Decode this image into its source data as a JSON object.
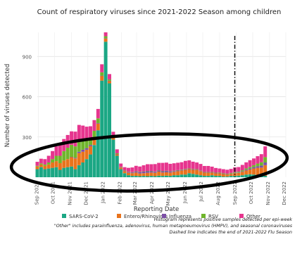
{
  "chart_data": {
    "type": "bar",
    "stacked": true,
    "title": "Count of respiratory viruses since 2021-2022 Season among children",
    "xlabel": "Reporting Date",
    "ylabel": "Number of viruses detected",
    "ylim": [
      0,
      1080
    ],
    "yticks": [
      300,
      600,
      900
    ],
    "xticks": [
      "Sep 2021",
      "Oct 2021",
      "Nov 2021",
      "Dec 2021",
      "Jan 2022",
      "Feb 2022",
      "Mar 2022",
      "Apr 2022",
      "May 2022",
      "Jun 2022",
      "Jul 2022",
      "Aug 2022",
      "Sep 2022",
      "Oct 2022",
      "Nov 2022",
      "Dec 2022"
    ],
    "grid": true,
    "legend_placement": "bottom",
    "series": [
      {
        "name": "SARS-CoV-2",
        "color": "#1ba784",
        "values": [
          60,
          75,
          60,
          65,
          70,
          75,
          55,
          70,
          75,
          80,
          60,
          90,
          110,
          135,
          170,
          240,
          350,
          720,
          1010,
          700,
          280,
          160,
          60,
          30,
          15,
          10,
          10,
          8,
          10,
          8,
          10,
          8,
          12,
          10,
          12,
          10,
          15,
          15,
          20,
          20,
          30,
          25,
          20,
          15,
          10,
          10,
          15,
          10,
          10,
          5,
          6,
          10,
          10,
          12,
          15,
          20,
          22,
          20,
          15,
          12,
          10
        ]
      },
      {
        "name": "Entero/Rhinovirus",
        "color": "#e8731c",
        "values": [
          20,
          20,
          25,
          30,
          40,
          45,
          50,
          55,
          60,
          70,
          80,
          90,
          80,
          70,
          60,
          55,
          50,
          35,
          25,
          18,
          15,
          12,
          12,
          15,
          18,
          20,
          25,
          20,
          20,
          25,
          25,
          25,
          30,
          25,
          25,
          25,
          25,
          30,
          30,
          35,
          30,
          30,
          35,
          30,
          25,
          25,
          20,
          20,
          20,
          20,
          15,
          15,
          20,
          20,
          25,
          30,
          35,
          45,
          55,
          60,
          80
        ]
      },
      {
        "name": "Influenza",
        "color": "#7c4fa6",
        "values": [
          0,
          0,
          0,
          0,
          0,
          0,
          0,
          0,
          0,
          2,
          5,
          10,
          15,
          12,
          10,
          6,
          4,
          2,
          1,
          1,
          1,
          1,
          2,
          3,
          5,
          6,
          8,
          10,
          12,
          12,
          10,
          8,
          8,
          10,
          10,
          8,
          6,
          5,
          4,
          4,
          3,
          3,
          2,
          1,
          1,
          1,
          1,
          1,
          1,
          1,
          1,
          2,
          3,
          3,
          4,
          6,
          8,
          10,
          12,
          15,
          20
        ]
      },
      {
        "name": "RSV",
        "color": "#6fb52c",
        "values": [
          5,
          8,
          10,
          15,
          25,
          40,
          55,
          70,
          85,
          90,
          85,
          80,
          70,
          60,
          50,
          45,
          35,
          25,
          15,
          10,
          8,
          5,
          3,
          2,
          2,
          2,
          2,
          2,
          2,
          2,
          2,
          2,
          2,
          2,
          2,
          2,
          3,
          3,
          3,
          3,
          3,
          3,
          3,
          3,
          3,
          3,
          3,
          3,
          4,
          4,
          4,
          5,
          5,
          6,
          8,
          10,
          12,
          15,
          20,
          25,
          40
        ]
      },
      {
        "name": "Other",
        "color": "#e6358e",
        "values": [
          30,
          35,
          40,
          50,
          60,
          70,
          80,
          90,
          95,
          100,
          110,
          120,
          110,
          100,
          90,
          80,
          70,
          60,
          50,
          40,
          35,
          30,
          25,
          25,
          30,
          35,
          40,
          40,
          45,
          50,
          50,
          55,
          55,
          60,
          60,
          55,
          55,
          55,
          55,
          60,
          60,
          55,
          50,
          50,
          45,
          45,
          40,
          35,
          30,
          30,
          30,
          30,
          35,
          35,
          40,
          45,
          50,
          50,
          55,
          60,
          80
        ]
      }
    ],
    "annotations": [
      {
        "type": "vertical-dashed-line",
        "x": "2022-08-29",
        "label": "End of 2021-2022 Flu Season"
      },
      {
        "type": "ellipse",
        "description": "hand-drawn black ellipse encircling the non-COVID viruses"
      }
    ]
  },
  "footnotes": [
    "Histogram represents positive samples detected per epi-week",
    "\"Other\" includes parainfluenza, adenovirus, human metapneumovirus (HMPV), and seasonal coronaviruses",
    "Dashed line indicates the end of 2021-2022 Flu Season"
  ]
}
